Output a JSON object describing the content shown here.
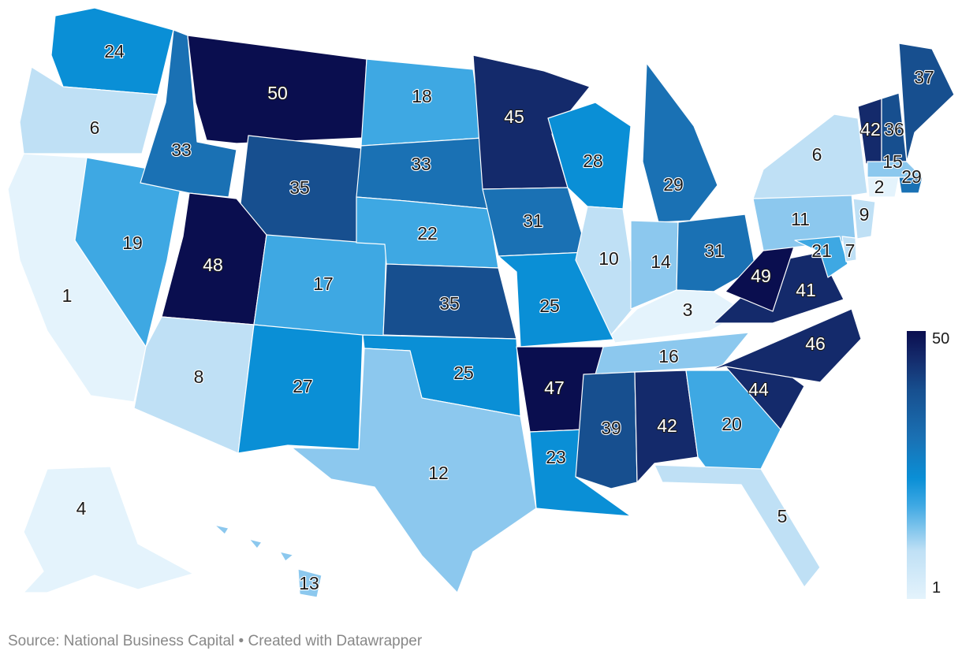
{
  "map_data": {
    "type": "choropleth",
    "title": "",
    "legend": {
      "min": 1,
      "max": 50,
      "min_label": "1",
      "max_label": "50",
      "placement": "right"
    },
    "color_scale": [
      "#e4f3fc",
      "#bfe0f5",
      "#8cc8ee",
      "#3ea8e3",
      "#0a8fd6",
      "#1a71b4",
      "#174f8f",
      "#142a6b",
      "#0a0e4f"
    ],
    "states": [
      {
        "name": "Washington",
        "rank": 24
      },
      {
        "name": "Oregon",
        "rank": 6
      },
      {
        "name": "California",
        "rank": 1
      },
      {
        "name": "Nevada",
        "rank": 19
      },
      {
        "name": "Idaho",
        "rank": 33
      },
      {
        "name": "Montana",
        "rank": 50
      },
      {
        "name": "Wyoming",
        "rank": 35
      },
      {
        "name": "Utah",
        "rank": 48
      },
      {
        "name": "Colorado",
        "rank": 17
      },
      {
        "name": "Arizona",
        "rank": 8
      },
      {
        "name": "New Mexico",
        "rank": 27
      },
      {
        "name": "North Dakota",
        "rank": 18
      },
      {
        "name": "South Dakota",
        "rank": 33
      },
      {
        "name": "Nebraska",
        "rank": 22
      },
      {
        "name": "Kansas",
        "rank": 35
      },
      {
        "name": "Oklahoma",
        "rank": 25
      },
      {
        "name": "Texas",
        "rank": 12
      },
      {
        "name": "Minnesota",
        "rank": 45
      },
      {
        "name": "Iowa",
        "rank": 31
      },
      {
        "name": "Missouri",
        "rank": 25
      },
      {
        "name": "Arkansas",
        "rank": 47
      },
      {
        "name": "Louisiana",
        "rank": 23
      },
      {
        "name": "Wisconsin",
        "rank": 28
      },
      {
        "name": "Illinois",
        "rank": 10
      },
      {
        "name": "Michigan",
        "rank": 29
      },
      {
        "name": "Indiana",
        "rank": 14
      },
      {
        "name": "Ohio",
        "rank": 31
      },
      {
        "name": "Kentucky",
        "rank": 3
      },
      {
        "name": "Tennessee",
        "rank": 16
      },
      {
        "name": "Mississippi",
        "rank": 39
      },
      {
        "name": "Alabama",
        "rank": 42
      },
      {
        "name": "Georgia",
        "rank": 20
      },
      {
        "name": "Florida",
        "rank": 5
      },
      {
        "name": "South Carolina",
        "rank": 44
      },
      {
        "name": "North Carolina",
        "rank": 46
      },
      {
        "name": "Virginia",
        "rank": 41
      },
      {
        "name": "West Virginia",
        "rank": 49
      },
      {
        "name": "Pennsylvania",
        "rank": 11
      },
      {
        "name": "New York",
        "rank": 6
      },
      {
        "name": "New Jersey",
        "rank": 9
      },
      {
        "name": "Maryland",
        "rank": 21
      },
      {
        "name": "Delaware",
        "rank": 7
      },
      {
        "name": "Vermont",
        "rank": 42
      },
      {
        "name": "New Hampshire",
        "rank": 36
      },
      {
        "name": "Maine",
        "rank": 37
      },
      {
        "name": "Massachusetts",
        "rank": 15
      },
      {
        "name": "Rhode Island",
        "rank": 29
      },
      {
        "name": "Connecticut",
        "rank": 2
      },
      {
        "name": "Alaska",
        "rank": 4
      },
      {
        "name": "Hawaii",
        "rank": 13
      }
    ]
  },
  "source": "Source: National Business Capital • Created with Datawrapper"
}
